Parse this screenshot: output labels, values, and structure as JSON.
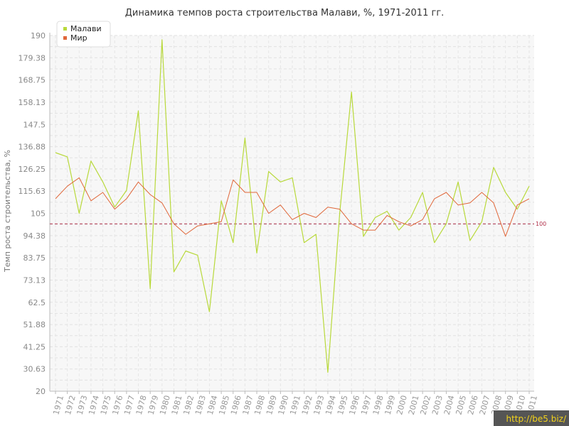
{
  "chart_data": {
    "type": "line",
    "title": "Динамика темпов роста строительства Малави, %, 1971-2011 гг.",
    "xlabel": "",
    "ylabel": "Темп роста строительства, %",
    "ylim": [
      20,
      190
    ],
    "yticks": [
      "20",
      "30.63",
      "41.25",
      "51.88",
      "62.5",
      "73.13",
      "83.75",
      "94.38",
      "105",
      "115.63",
      "126.25",
      "136.88",
      "147.5",
      "158.13",
      "168.75",
      "179.38",
      "190"
    ],
    "categories": [
      "1971",
      "1972",
      "1973",
      "1974",
      "1975",
      "1976",
      "1977",
      "1978",
      "1979",
      "1980",
      "1981",
      "1982",
      "1983",
      "1984",
      "1985",
      "1986",
      "1987",
      "1988",
      "1989",
      "1990",
      "1991",
      "1992",
      "1993",
      "1994",
      "1995",
      "1996",
      "1997",
      "1998",
      "1999",
      "2000",
      "2001",
      "2002",
      "2003",
      "2004",
      "2005",
      "2006",
      "2007",
      "2008",
      "2009",
      "2010",
      "2011"
    ],
    "series": [
      {
        "name": "Малави",
        "color": "#b8d93a",
        "values": [
          134,
          132,
          105,
          130,
          120,
          108,
          116,
          154,
          69,
          188,
          77,
          87,
          85,
          58,
          111,
          91,
          141,
          86,
          125,
          120,
          122,
          91,
          95,
          29,
          105,
          163,
          94,
          103,
          106,
          97,
          103,
          115,
          91,
          100,
          120,
          92,
          101,
          127,
          115,
          107,
          118
        ]
      },
      {
        "name": "Мир",
        "color": "#e0673a",
        "values": [
          112,
          118,
          122,
          111,
          115,
          107,
          112,
          120,
          114,
          110,
          100,
          95,
          99,
          100,
          101,
          121,
          115,
          115,
          105,
          109,
          102,
          105,
          103,
          108,
          107,
          100,
          97,
          97,
          104,
          101,
          99,
          102,
          112,
          115,
          109,
          110,
          115,
          110,
          94,
          109,
          112
        ]
      }
    ],
    "reference_line": {
      "value": 100,
      "label": "100",
      "color": "#b0304a"
    },
    "grid": true,
    "legend_position": "top-left"
  },
  "watermark": "http://be5.biz/"
}
